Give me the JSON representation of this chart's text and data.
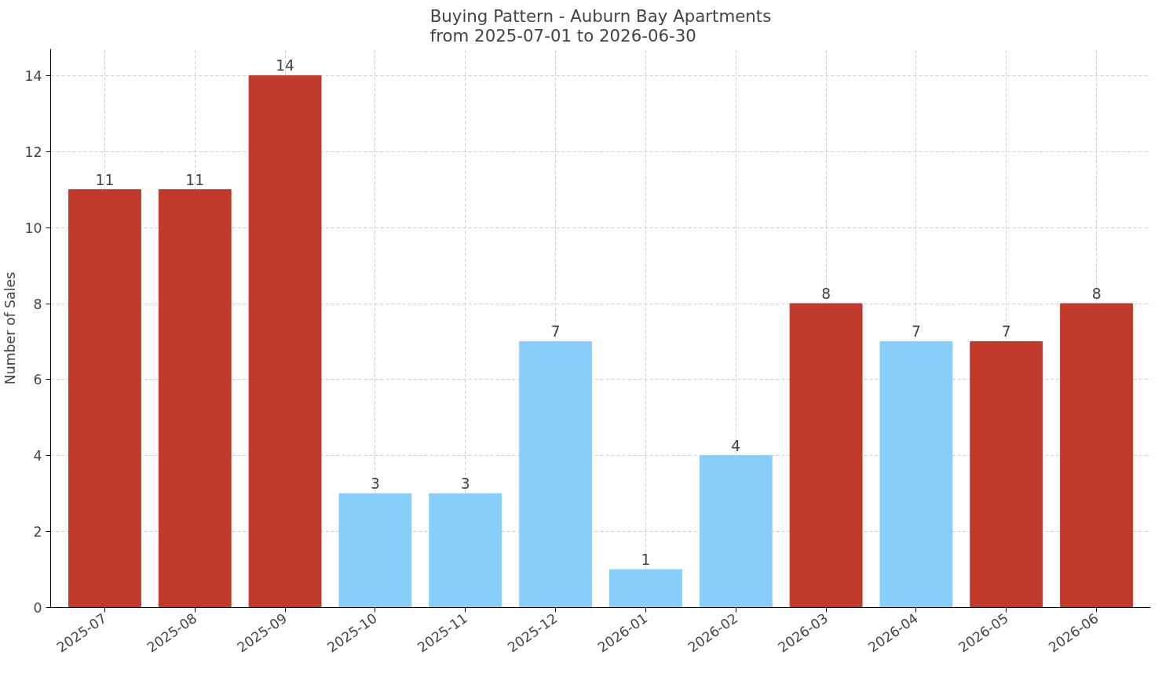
{
  "chart_data": {
    "type": "bar",
    "title": "Buying Pattern - Auburn Bay Apartments\nfrom 2025-07-01 to 2026-06-30",
    "ylabel": "Number of Sales",
    "categories": [
      "2025-07",
      "2025-08",
      "2025-09",
      "2025-10",
      "2025-11",
      "2025-12",
      "2026-01",
      "2026-02",
      "2026-03",
      "2026-04",
      "2026-05",
      "2026-06"
    ],
    "values": [
      11,
      11,
      14,
      3,
      3,
      7,
      1,
      4,
      8,
      7,
      7,
      8
    ],
    "colors": [
      "#c0392b",
      "#c0392b",
      "#c0392b",
      "#87cefa",
      "#87cefa",
      "#87cefa",
      "#87cefa",
      "#87cefa",
      "#c0392b",
      "#87cefa",
      "#c0392b",
      "#c0392b"
    ],
    "ylim": [
      0,
      14.7
    ],
    "yticks": [
      0,
      2,
      4,
      6,
      8,
      10,
      12,
      14
    ],
    "grid": true,
    "data_labels": true
  }
}
